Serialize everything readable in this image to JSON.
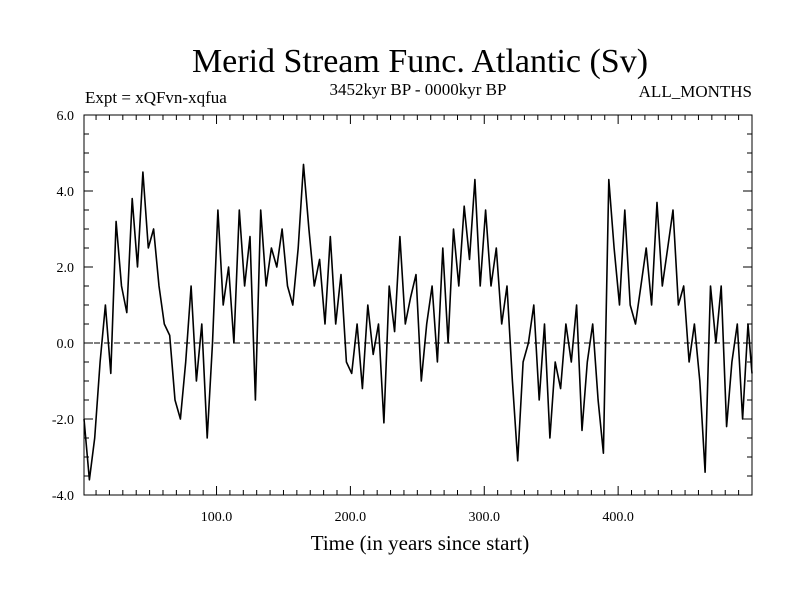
{
  "chart_data": {
    "type": "line",
    "title": "Merid Stream Func. Atlantic (Sv)",
    "subtitle_left": "Expt = xQFvn-xqfua",
    "subtitle_center": "3452kyr BP - 0000kyr BP",
    "subtitle_right": "ALL_MONTHS",
    "xlabel": "Time (in years since start)",
    "ylabel": "",
    "xlim": [
      1,
      500
    ],
    "ylim": [
      -4,
      6
    ],
    "xticks": [
      100,
      200,
      300,
      400
    ],
    "xtick_labels": [
      "100.0",
      "200.0",
      "300.0",
      "400.0"
    ],
    "yticks": [
      -4,
      -2,
      0,
      2,
      4,
      6
    ],
    "ytick_labels": [
      "-4.0",
      "-2.0",
      "0.0",
      "2.0",
      "4.0",
      "6.0"
    ],
    "zero_line": true,
    "series": [
      {
        "name": "Merid Stream Func. Atlantic",
        "x": [
          1,
          5,
          9,
          13,
          17,
          21,
          25,
          29,
          33,
          37,
          41,
          45,
          49,
          53,
          57,
          61,
          65,
          69,
          73,
          77,
          81,
          85,
          89,
          93,
          97,
          101,
          105,
          109,
          113,
          117,
          121,
          125,
          129,
          133,
          137,
          141,
          145,
          149,
          153,
          157,
          161,
          165,
          169,
          173,
          177,
          181,
          185,
          189,
          193,
          197,
          201,
          205,
          209,
          213,
          217,
          221,
          225,
          229,
          233,
          237,
          241,
          245,
          249,
          253,
          257,
          261,
          265,
          269,
          273,
          277,
          281,
          285,
          289,
          293,
          297,
          301,
          305,
          309,
          313,
          317,
          321,
          325,
          329,
          333,
          337,
          341,
          345,
          349,
          353,
          357,
          361,
          365,
          369,
          373,
          377,
          381,
          385,
          389,
          393,
          397,
          401,
          405,
          409,
          413,
          417,
          421,
          425,
          429,
          433,
          437,
          441,
          445,
          449,
          453,
          457,
          461,
          465,
          469,
          473,
          477,
          481,
          485,
          489,
          493,
          497,
          500
        ],
        "values": [
          -2.0,
          -3.6,
          -2.5,
          -0.5,
          1.0,
          -0.8,
          3.2,
          1.5,
          0.8,
          3.8,
          2.0,
          4.5,
          2.5,
          3.0,
          1.5,
          0.5,
          0.2,
          -1.5,
          -2.0,
          -0.5,
          1.5,
          -1.0,
          0.5,
          -2.5,
          0.0,
          3.5,
          1.0,
          2.0,
          0.0,
          3.5,
          1.5,
          2.8,
          -1.5,
          3.5,
          1.5,
          2.5,
          2.0,
          3.0,
          1.5,
          1.0,
          2.5,
          4.7,
          3.0,
          1.5,
          2.2,
          0.5,
          2.8,
          0.5,
          1.8,
          -0.5,
          -0.8,
          0.5,
          -1.2,
          1.0,
          -0.3,
          0.5,
          -2.1,
          1.5,
          0.3,
          2.8,
          0.5,
          1.2,
          1.8,
          -1.0,
          0.5,
          1.5,
          -0.5,
          2.5,
          0.0,
          3.0,
          1.5,
          3.6,
          2.2,
          4.3,
          1.5,
          3.5,
          1.5,
          2.5,
          0.5,
          1.5,
          -1.0,
          -3.1,
          -0.5,
          0.0,
          1.0,
          -1.5,
          0.5,
          -2.5,
          -0.5,
          -1.2,
          0.5,
          -0.5,
          1.0,
          -2.3,
          -0.5,
          0.5,
          -1.5,
          -2.9,
          4.3,
          2.5,
          1.0,
          3.5,
          1.0,
          0.5,
          1.5,
          2.5,
          1.0,
          3.7,
          1.5,
          2.5,
          3.5,
          1.0,
          1.5,
          -0.5,
          0.5,
          -1.0,
          -3.4,
          1.5,
          0.0,
          1.5,
          -2.2,
          -0.5,
          0.5,
          -2.0,
          0.5,
          -0.8
        ]
      }
    ]
  }
}
